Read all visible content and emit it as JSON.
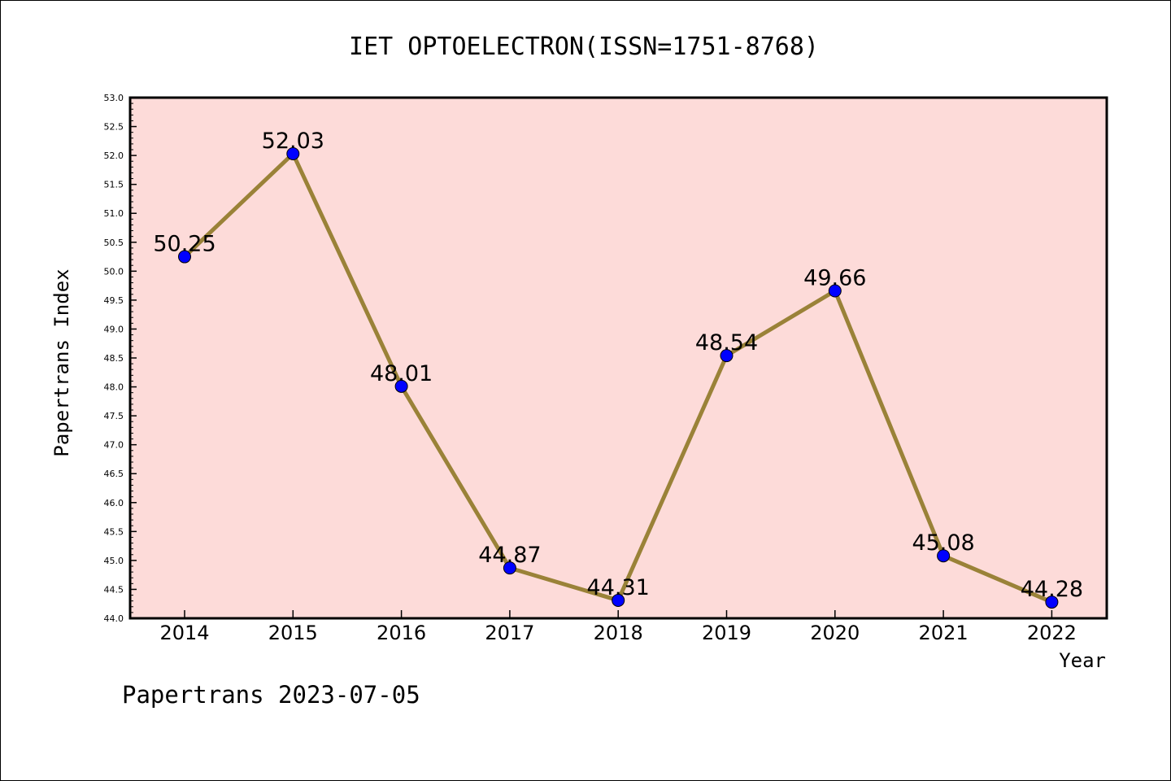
{
  "chart_data": {
    "type": "line",
    "title": "IET OPTOELECTRON(ISSN=1751-8768)",
    "xlabel": "Year",
    "ylabel": "Papertrans Index",
    "categories": [
      "2014",
      "2015",
      "2016",
      "2017",
      "2018",
      "2019",
      "2020",
      "2021",
      "2022"
    ],
    "series": [
      {
        "values": [
          50.25,
          52.03,
          48.01,
          44.87,
          44.31,
          48.54,
          49.66,
          45.08,
          44.28
        ],
        "labels": [
          "50.25",
          "52.03",
          "48.01",
          "44.87",
          "44.31",
          "48.54",
          "49.66",
          "45.08",
          "44.28"
        ],
        "line_color": "#9a8238",
        "marker_color": "#0000ff"
      }
    ],
    "ylim": [
      44.0,
      53.0
    ],
    "yticks": [
      "44.0",
      "44.5",
      "45.0",
      "45.5",
      "46.0",
      "46.5",
      "47.0",
      "47.5",
      "48.0",
      "48.5",
      "49.0",
      "49.5",
      "50.0",
      "50.5",
      "51.0",
      "51.5",
      "52.0",
      "52.5",
      "53.0"
    ],
    "grid": false,
    "plot_background": "#fddbd9"
  },
  "footer": "Papertrans 2023-07-05"
}
